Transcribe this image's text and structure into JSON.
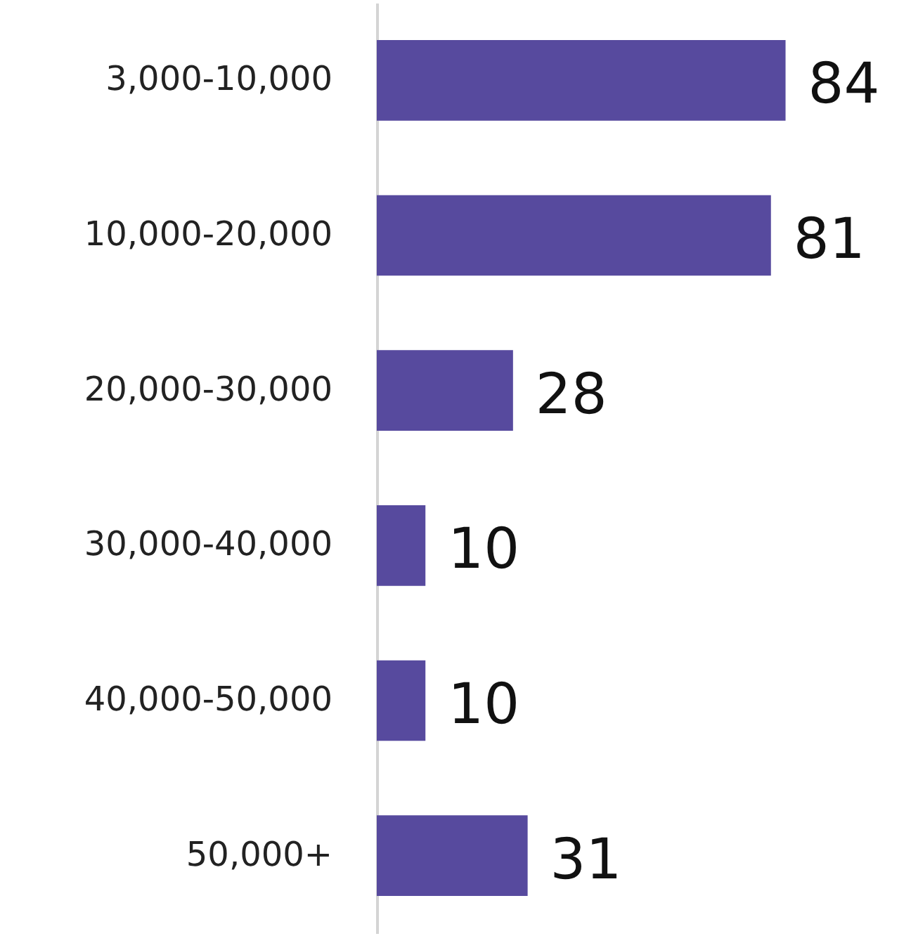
{
  "chart_data": {
    "type": "bar",
    "orientation": "horizontal",
    "categories": [
      "3,000-10,000",
      "10,000-20,000",
      "20,000-30,000",
      "30,000-40,000",
      "40,000-50,000",
      "50,000+"
    ],
    "values": [
      84,
      81,
      28,
      10,
      10,
      31
    ],
    "color": "#574a9e",
    "data_labels": true
  }
}
